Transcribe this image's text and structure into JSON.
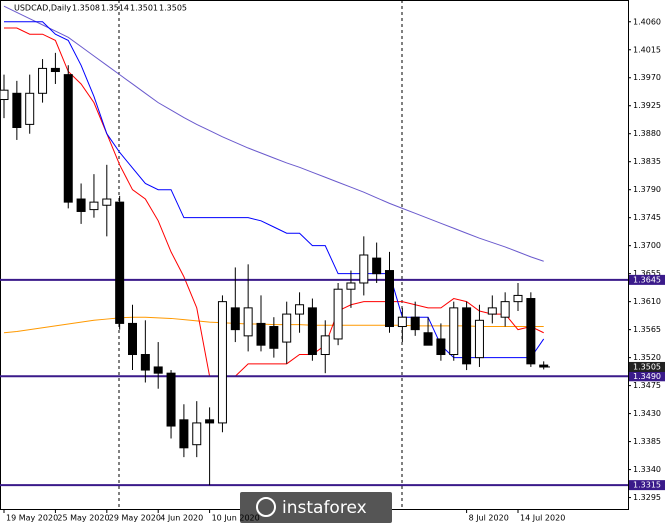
{
  "chart_data": {
    "type": "candlestick",
    "title": "USDCAD,Daily",
    "categories": [
      "19 May 2020",
      null,
      null,
      null,
      "25 May 2020",
      null,
      null,
      null,
      "29 May 2020",
      null,
      null,
      null,
      "4 Jun 2020",
      null,
      null,
      null,
      "10 Jun 2020",
      null,
      null,
      null,
      null,
      null,
      null,
      null,
      null,
      null,
      null,
      null,
      null,
      null,
      null,
      null,
      null,
      null,
      null,
      null,
      "8 Jul 2020",
      null,
      null,
      null,
      "14 Jul 2020",
      null,
      null
    ],
    "open": [
      1.3935,
      1.3945,
      1.3895,
      1.3945,
      1.3985,
      1.3975,
      1.3775,
      1.3758,
      1.3765,
      1.377,
      1.3575,
      1.3525,
      1.3505,
      1.3495,
      1.342,
      1.338,
      1.342,
      1.3415,
      1.36,
      1.3555,
      1.3575,
      1.357,
      1.3545,
      1.359,
      1.36,
      1.3525,
      1.355,
      1.363,
      1.364,
      1.368,
      1.366,
      1.357,
      1.3585,
      1.356,
      1.355,
      1.3525,
      1.36,
      1.352,
      1.359,
      1.3585,
      1.361,
      1.3615,
      1.3508
    ],
    "high": [
      1.3975,
      1.3965,
      1.3975,
      1.4,
      1.401,
      1.399,
      1.38,
      1.3815,
      1.383,
      1.378,
      1.3605,
      1.358,
      1.3545,
      1.35,
      1.3445,
      1.345,
      1.344,
      1.362,
      1.3665,
      1.367,
      1.362,
      1.3585,
      1.361,
      1.3625,
      1.3615,
      1.358,
      1.364,
      1.366,
      1.3715,
      1.3705,
      1.369,
      1.36,
      1.361,
      1.3585,
      1.3575,
      1.361,
      1.361,
      1.3605,
      1.362,
      1.3625,
      1.364,
      1.3625,
      1.3514
    ],
    "low": [
      1.3905,
      1.387,
      1.388,
      1.393,
      1.396,
      1.376,
      1.3735,
      1.3745,
      1.3715,
      1.3565,
      1.35,
      1.348,
      1.347,
      1.339,
      1.336,
      1.336,
      1.3315,
      1.34,
      1.3545,
      1.353,
      1.353,
      1.352,
      1.351,
      1.356,
      1.3515,
      1.3495,
      1.354,
      1.36,
      1.362,
      1.364,
      1.356,
      1.3545,
      1.3555,
      1.354,
      1.3515,
      1.3515,
      1.35,
      1.3505,
      1.3575,
      1.357,
      1.3595,
      1.3505,
      1.3501
    ],
    "close": [
      1.395,
      1.389,
      1.3945,
      1.3985,
      1.398,
      1.377,
      1.3755,
      1.377,
      1.3775,
      1.3575,
      1.3525,
      1.35,
      1.3495,
      1.341,
      1.3375,
      1.3415,
      1.3415,
      1.361,
      1.3565,
      1.36,
      1.354,
      1.3535,
      1.359,
      1.3605,
      1.3525,
      1.3555,
      1.363,
      1.364,
      1.3685,
      1.3655,
      1.357,
      1.3585,
      1.3565,
      1.354,
      1.3525,
      1.36,
      1.351,
      1.358,
      1.36,
      1.361,
      1.362,
      1.351,
      1.3505
    ],
    "lines": [
      {
        "color": "#6a5acd",
        "values": [
          1.4085,
          1.4075,
          1.4065,
          1.4055,
          1.4045,
          1.4035,
          1.402,
          1.4005,
          1.399,
          1.3975,
          1.396,
          1.3945,
          1.393,
          1.3918,
          1.3906,
          1.3895,
          1.3885,
          1.3875,
          1.3866,
          1.3857,
          1.3849,
          1.3841,
          1.3833,
          1.3826,
          1.3818,
          1.381,
          1.3802,
          1.3794,
          1.3786,
          1.3777,
          1.3768,
          1.376,
          1.3752,
          1.3744,
          1.3736,
          1.3728,
          1.372,
          1.3712,
          1.3705,
          1.3698,
          1.369,
          1.3682,
          1.3675
        ]
      },
      {
        "color": "#ff9900",
        "values": [
          1.356,
          1.3562,
          1.3565,
          1.3568,
          1.3571,
          1.3574,
          1.3577,
          1.358,
          1.3582,
          1.3584,
          1.3585,
          1.3585,
          1.3584,
          1.3583,
          1.3581,
          1.3579,
          1.3577,
          1.3576,
          1.3575,
          1.3574,
          1.3574,
          1.3573,
          1.3573,
          1.3573,
          1.3572,
          1.3572,
          1.3572,
          1.3572,
          1.3572,
          1.3572,
          1.3572,
          1.3572,
          1.3571,
          1.3571,
          1.3571,
          1.3571,
          1.3571,
          1.357,
          1.357,
          1.357,
          1.357,
          1.357,
          1.357
        ]
      },
      {
        "color": "#ff0000",
        "values": [
          1.405,
          1.405,
          1.404,
          1.404,
          1.403,
          1.398,
          1.396,
          1.393,
          1.388,
          1.383,
          1.379,
          1.3775,
          1.374,
          1.369,
          1.365,
          1.36,
          1.349,
          1.349,
          1.349,
          1.351,
          1.351,
          1.351,
          1.351,
          1.3525,
          1.3525,
          1.354,
          1.3595,
          1.3605,
          1.361,
          1.361,
          1.361,
          1.361,
          1.3605,
          1.36,
          1.36,
          1.3615,
          1.361,
          1.3595,
          1.359,
          1.359,
          1.3565,
          1.357,
          1.356
        ]
      },
      {
        "color": "#0000ff",
        "values": [
          1.406,
          1.406,
          1.406,
          1.406,
          1.404,
          1.403,
          1.399,
          1.394,
          1.388,
          1.385,
          1.3825,
          1.38,
          1.379,
          1.379,
          1.3745,
          1.3745,
          1.3745,
          1.3745,
          1.3745,
          1.3745,
          1.374,
          1.373,
          1.372,
          1.372,
          1.37,
          1.37,
          1.3655,
          1.3655,
          1.3655,
          1.3655,
          1.3655,
          1.3585,
          1.3585,
          1.3585,
          1.354,
          1.352,
          1.352,
          1.352,
          1.352,
          1.352,
          1.352,
          1.352,
          1.355
        ]
      }
    ],
    "levels": [
      {
        "value": 1.3645,
        "color": "#3a1a8a"
      },
      {
        "value": 1.349,
        "label": "1.3490",
        "color": "#3a1a8a"
      },
      {
        "value": 1.3315,
        "color": "#3a1a8a"
      }
    ],
    "last_price": 1.3505,
    "ylim": [
      1.3275,
      1.4095
    ],
    "yticks": [
      {
        "value": 1.406,
        "label": "1.4060"
      },
      1.4015,
      {
        "value": 1.397,
        "label": "1.3970"
      },
      1.3925,
      {
        "value": 1.388,
        "label": "1.3880"
      },
      1.3835,
      {
        "value": 1.379,
        "label": "1.3790"
      },
      1.3745,
      {
        "value": 1.37,
        "label": "1.3700"
      },
      1.3655,
      {
        "value": 1.361,
        "label": "1.3610"
      },
      1.3565,
      {
        "value": 1.352,
        "label": "1.3520"
      },
      1.3475,
      {
        "value": 1.343,
        "label": "1.3430"
      },
      1.3385,
      {
        "value": 1.334,
        "label": "1.3340"
      },
      1.3295
    ]
  },
  "watermark": "instaforex"
}
